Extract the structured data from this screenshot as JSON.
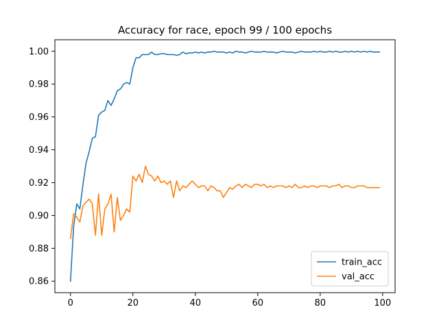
{
  "chart_data": {
    "type": "line",
    "title": "Accuracy for race, epoch 99 / 100 epochs",
    "xlabel": "",
    "ylabel": "",
    "xlim": [
      -5,
      104
    ],
    "ylim": [
      0.853,
      1.007
    ],
    "xticks": [
      0,
      20,
      40,
      60,
      80,
      100
    ],
    "yticks": [
      0.86,
      0.88,
      0.9,
      0.92,
      0.94,
      0.96,
      0.98,
      1.0
    ],
    "ytick_labels": [
      "0.86",
      "0.88",
      "0.90",
      "0.92",
      "0.94",
      "0.96",
      "0.98",
      "1.00"
    ],
    "grid": false,
    "legend": "lower-right",
    "series": [
      {
        "name": "train_acc",
        "color": "#1f77b4",
        "x": [
          0,
          1,
          2,
          3,
          4,
          5,
          6,
          7,
          8,
          9,
          10,
          11,
          12,
          13,
          14,
          15,
          16,
          17,
          18,
          19,
          20,
          21,
          22,
          23,
          24,
          25,
          26,
          27,
          28,
          29,
          30,
          31,
          32,
          33,
          34,
          35,
          36,
          37,
          38,
          39,
          40,
          41,
          42,
          43,
          44,
          45,
          46,
          47,
          48,
          49,
          50,
          51,
          52,
          53,
          54,
          55,
          56,
          57,
          58,
          59,
          60,
          61,
          62,
          63,
          64,
          65,
          66,
          67,
          68,
          69,
          70,
          71,
          72,
          73,
          74,
          75,
          76,
          77,
          78,
          79,
          80,
          81,
          82,
          83,
          84,
          85,
          86,
          87,
          88,
          89,
          90,
          91,
          92,
          93,
          94,
          95,
          96,
          97,
          98,
          99
        ],
        "values": [
          0.86,
          0.893,
          0.907,
          0.904,
          0.919,
          0.932,
          0.939,
          0.947,
          0.948,
          0.961,
          0.963,
          0.964,
          0.97,
          0.967,
          0.971,
          0.976,
          0.977,
          0.98,
          0.981,
          0.98,
          0.99,
          0.996,
          0.996,
          0.998,
          0.998,
          0.998,
          0.9995,
          0.998,
          0.998,
          0.9985,
          0.9985,
          0.998,
          0.998,
          0.998,
          0.9975,
          0.998,
          0.9995,
          0.9985,
          0.999,
          0.999,
          0.9995,
          0.999,
          0.9995,
          0.999,
          0.9995,
          0.9995,
          1.0,
          0.9995,
          0.9995,
          0.9995,
          0.999,
          0.9995,
          0.999,
          1.0,
          0.9995,
          0.9995,
          0.999,
          0.9995,
          1.0,
          0.9995,
          0.9995,
          0.9995,
          1.0,
          0.9995,
          0.9995,
          0.9995,
          0.999,
          0.9995,
          1.0,
          0.9995,
          0.9995,
          0.9995,
          0.999,
          0.9995,
          1.0,
          0.9995,
          0.9995,
          0.9995,
          1.0,
          0.9995,
          1.0,
          0.9995,
          0.9995,
          1.0,
          0.9995,
          1.0,
          0.9995,
          0.9995,
          1.0,
          0.9995,
          1.0,
          0.9995,
          1.0,
          0.9995,
          1.0,
          0.9995,
          1.0,
          0.9995,
          0.9995,
          0.9995
        ]
      },
      {
        "name": "val_acc",
        "color": "#ff7f0e",
        "x": [
          0,
          1,
          2,
          3,
          4,
          5,
          6,
          7,
          8,
          9,
          10,
          11,
          12,
          13,
          14,
          15,
          16,
          17,
          18,
          19,
          20,
          21,
          22,
          23,
          24,
          25,
          26,
          27,
          28,
          29,
          30,
          31,
          32,
          33,
          34,
          35,
          36,
          37,
          38,
          39,
          40,
          41,
          42,
          43,
          44,
          45,
          46,
          47,
          48,
          49,
          50,
          51,
          52,
          53,
          54,
          55,
          56,
          57,
          58,
          59,
          60,
          61,
          62,
          63,
          64,
          65,
          66,
          67,
          68,
          69,
          70,
          71,
          72,
          73,
          74,
          75,
          76,
          77,
          78,
          79,
          80,
          81,
          82,
          83,
          84,
          85,
          86,
          87,
          88,
          89,
          90,
          91,
          92,
          93,
          94,
          95,
          96,
          97,
          98,
          99
        ],
        "values": [
          0.886,
          0.901,
          0.899,
          0.896,
          0.906,
          0.908,
          0.91,
          0.907,
          0.888,
          0.913,
          0.888,
          0.904,
          0.907,
          0.913,
          0.89,
          0.911,
          0.897,
          0.9,
          0.904,
          0.902,
          0.924,
          0.921,
          0.925,
          0.92,
          0.93,
          0.925,
          0.924,
          0.921,
          0.924,
          0.92,
          0.921,
          0.919,
          0.921,
          0.911,
          0.921,
          0.915,
          0.918,
          0.917,
          0.919,
          0.921,
          0.919,
          0.917,
          0.918,
          0.918,
          0.915,
          0.918,
          0.917,
          0.915,
          0.915,
          0.911,
          0.914,
          0.917,
          0.916,
          0.918,
          0.919,
          0.917,
          0.919,
          0.918,
          0.917,
          0.919,
          0.919,
          0.918,
          0.919,
          0.917,
          0.918,
          0.917,
          0.918,
          0.918,
          0.918,
          0.917,
          0.918,
          0.917,
          0.919,
          0.917,
          0.917,
          0.918,
          0.917,
          0.918,
          0.918,
          0.917,
          0.918,
          0.918,
          0.918,
          0.917,
          0.918,
          0.918,
          0.919,
          0.917,
          0.918,
          0.918,
          0.917,
          0.917,
          0.918,
          0.918,
          0.918,
          0.917,
          0.917,
          0.917,
          0.917,
          0.917
        ]
      }
    ]
  }
}
